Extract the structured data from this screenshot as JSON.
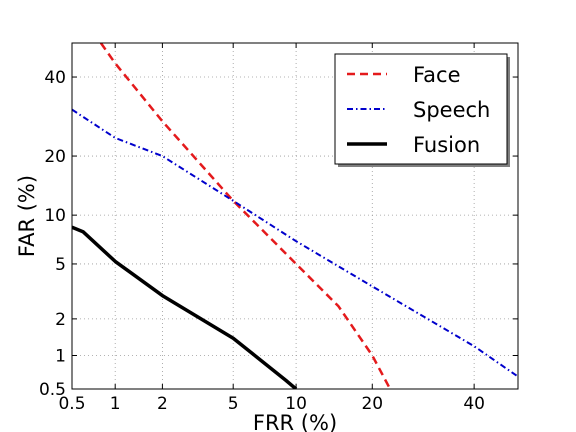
{
  "chart_data": {
    "type": "line",
    "title": "",
    "xlabel": "FRR (%)",
    "ylabel": "FAR (%)",
    "x_scale": "normal-deviate",
    "y_scale": "normal-deviate",
    "xlim": [
      0.5,
      50
    ],
    "ylim": [
      0.5,
      50
    ],
    "x_ticks": [
      0.5,
      1,
      2,
      5,
      10,
      20,
      40
    ],
    "y_ticks": [
      0.5,
      1,
      2,
      5,
      10,
      20,
      40
    ],
    "x_tick_labels": [
      "0.5",
      "1",
      "2",
      "5",
      "10",
      "20",
      "40"
    ],
    "y_tick_labels": [
      "0.5",
      "1",
      "2",
      "5",
      "10",
      "20",
      "40"
    ],
    "grid": true,
    "legend_position": "top-right",
    "series": [
      {
        "name": "Face",
        "color": "#e41a1c",
        "style": "dashed",
        "points": [
          [
            0.8,
            50
          ],
          [
            1,
            44
          ],
          [
            2,
            28
          ],
          [
            5,
            12
          ],
          [
            10,
            5
          ],
          [
            15,
            2.5
          ],
          [
            20,
            1
          ],
          [
            23,
            0.5
          ]
        ]
      },
      {
        "name": "Speech",
        "color": "#0000cc",
        "style": "dashdot",
        "points": [
          [
            0.5,
            31
          ],
          [
            1,
            24
          ],
          [
            2,
            20
          ],
          [
            5,
            12
          ],
          [
            10,
            7
          ],
          [
            20,
            3.5
          ],
          [
            40,
            1.2
          ],
          [
            50,
            0.65
          ]
        ]
      },
      {
        "name": "Fusion",
        "color": "#000000",
        "style": "solid",
        "points": [
          [
            0.5,
            8.5
          ],
          [
            0.6,
            8
          ],
          [
            1,
            5.2
          ],
          [
            2,
            3
          ],
          [
            5,
            1.4
          ],
          [
            9,
            0.6
          ],
          [
            10,
            0.5
          ]
        ]
      }
    ]
  }
}
